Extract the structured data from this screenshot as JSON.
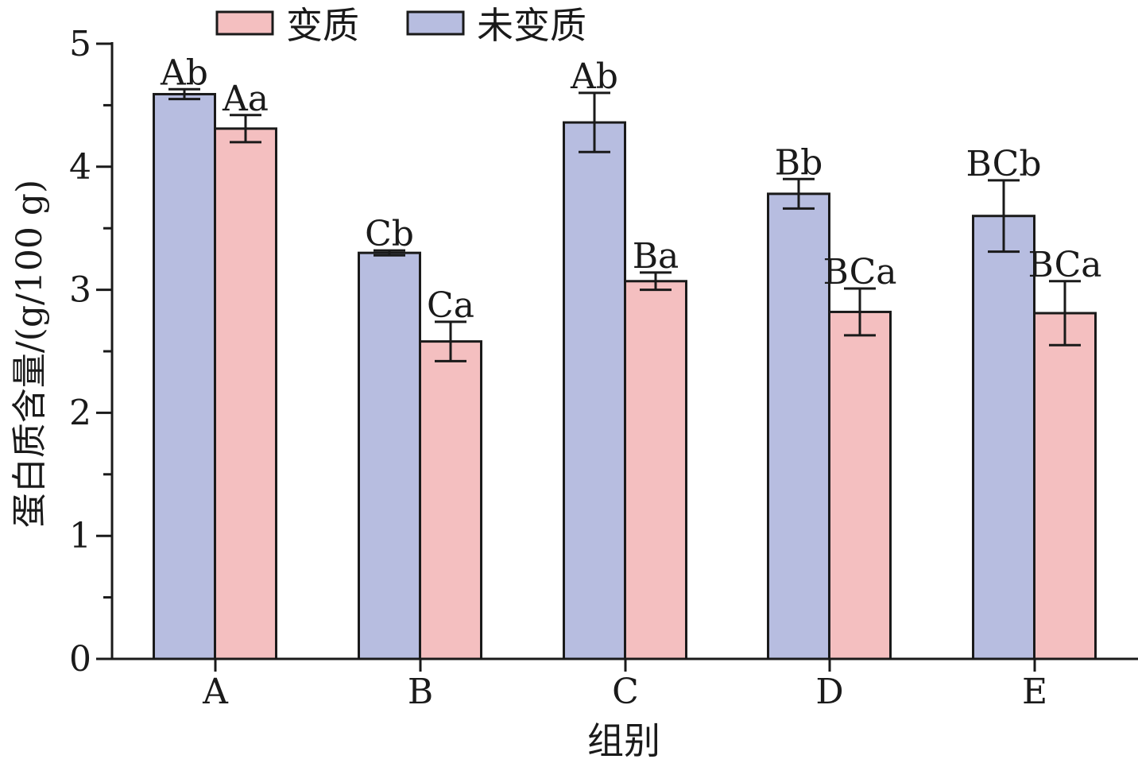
{
  "chart_data": {
    "type": "bar",
    "xlabel": "组别",
    "ylabel": "蛋白质含量/(g/100 g)",
    "ylim": [
      0,
      5
    ],
    "yticks": [
      0,
      1,
      2,
      3,
      4,
      5
    ],
    "categories": [
      "A",
      "B",
      "C",
      "D",
      "E"
    ],
    "legend_position": "top",
    "series": [
      {
        "name": "未变质",
        "color": "#b7bde0",
        "values": [
          4.59,
          3.3,
          4.36,
          3.78,
          3.6
        ],
        "errors": [
          0.04,
          0.02,
          0.24,
          0.12,
          0.29
        ],
        "labels": [
          "Ab",
          "Cb",
          "Ab",
          "Bb",
          "BCb"
        ]
      },
      {
        "name": "变质",
        "color": "#f4bfc0",
        "values": [
          4.31,
          2.58,
          3.07,
          2.82,
          2.81
        ],
        "errors": [
          0.11,
          0.16,
          0.07,
          0.19,
          0.26
        ],
        "labels": [
          "Aa",
          "Ca",
          "Ba",
          "BCa",
          "BCa"
        ]
      }
    ],
    "legend_order": [
      "变质",
      "未变质"
    ]
  }
}
